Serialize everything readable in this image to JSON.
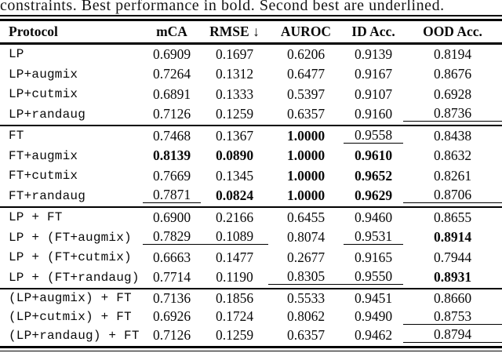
{
  "caption": "constraints. Best performance in bold. Second best are underlined.",
  "colors": {
    "background": "#ffffff",
    "text": "#0a0a0a",
    "rule": "#000000"
  },
  "table": {
    "columns": [
      "Protocol",
      "mCA",
      "RMSE ↓",
      "AUROC",
      "ID Acc.",
      "OOD Acc."
    ],
    "style_legend": {
      "n": "normal",
      "b": "bold (best)",
      "u": "underlined (second best)"
    },
    "blocks": [
      {
        "rows": [
          {
            "label": "LP",
            "values": [
              {
                "v": "0.6909",
                "s": "n"
              },
              {
                "v": "0.1697",
                "s": "n"
              },
              {
                "v": "0.6206",
                "s": "n"
              },
              {
                "v": "0.9139",
                "s": "n"
              },
              {
                "v": "0.8194",
                "s": "n"
              }
            ]
          },
          {
            "label": "LP+augmix",
            "values": [
              {
                "v": "0.7264",
                "s": "n"
              },
              {
                "v": "0.1312",
                "s": "n"
              },
              {
                "v": "0.6477",
                "s": "n"
              },
              {
                "v": "0.9167",
                "s": "n"
              },
              {
                "v": "0.8676",
                "s": "n"
              }
            ]
          },
          {
            "label": "LP+cutmix",
            "values": [
              {
                "v": "0.6891",
                "s": "n"
              },
              {
                "v": "0.1333",
                "s": "n"
              },
              {
                "v": "0.5397",
                "s": "n"
              },
              {
                "v": "0.9107",
                "s": "n"
              },
              {
                "v": "0.6928",
                "s": "n"
              }
            ]
          },
          {
            "label": "LP+randaug",
            "values": [
              {
                "v": "0.7126",
                "s": "n"
              },
              {
                "v": "0.1259",
                "s": "n"
              },
              {
                "v": "0.6357",
                "s": "n"
              },
              {
                "v": "0.9160",
                "s": "n"
              },
              {
                "v": "0.8736",
                "s": "u"
              }
            ]
          }
        ]
      },
      {
        "rows": [
          {
            "label": "FT",
            "values": [
              {
                "v": "0.7468",
                "s": "n"
              },
              {
                "v": "0.1367",
                "s": "n"
              },
              {
                "v": "1.0000",
                "s": "b"
              },
              {
                "v": "0.9558",
                "s": "u"
              },
              {
                "v": "0.8438",
                "s": "n"
              }
            ]
          },
          {
            "label": "FT+augmix",
            "values": [
              {
                "v": "0.8139",
                "s": "b"
              },
              {
                "v": "0.0890",
                "s": "b"
              },
              {
                "v": "1.0000",
                "s": "b"
              },
              {
                "v": "0.9610",
                "s": "b"
              },
              {
                "v": "0.8632",
                "s": "n"
              }
            ]
          },
          {
            "label": "FT+cutmix",
            "values": [
              {
                "v": "0.7669",
                "s": "n"
              },
              {
                "v": "0.1345",
                "s": "n"
              },
              {
                "v": "1.0000",
                "s": "b"
              },
              {
                "v": "0.9652",
                "s": "b"
              },
              {
                "v": "0.8261",
                "s": "n"
              }
            ]
          },
          {
            "label": "FT+randaug",
            "values": [
              {
                "v": "0.7871",
                "s": "u"
              },
              {
                "v": "0.0824",
                "s": "b"
              },
              {
                "v": "1.0000",
                "s": "b"
              },
              {
                "v": "0.9629",
                "s": "b"
              },
              {
                "v": "0.8706",
                "s": "u"
              }
            ]
          }
        ]
      },
      {
        "rows": [
          {
            "label": "LP + FT",
            "values": [
              {
                "v": "0.6900",
                "s": "n"
              },
              {
                "v": "0.2166",
                "s": "n"
              },
              {
                "v": "0.6455",
                "s": "n"
              },
              {
                "v": "0.9460",
                "s": "n"
              },
              {
                "v": "0.8655",
                "s": "n"
              }
            ]
          },
          {
            "label": "LP + (FT+augmix)",
            "values": [
              {
                "v": "0.7829",
                "s": "u"
              },
              {
                "v": "0.1089",
                "s": "u"
              },
              {
                "v": "0.8074",
                "s": "n"
              },
              {
                "v": "0.9531",
                "s": "u"
              },
              {
                "v": "0.8914",
                "s": "b"
              }
            ]
          },
          {
            "label": "LP + (FT+cutmix)",
            "values": [
              {
                "v": "0.6663",
                "s": "n"
              },
              {
                "v": "0.1477",
                "s": "n"
              },
              {
                "v": "0.2677",
                "s": "n"
              },
              {
                "v": "0.9165",
                "s": "n"
              },
              {
                "v": "0.7944",
                "s": "n"
              }
            ]
          },
          {
            "label": "LP + (FT+randaug)",
            "values": [
              {
                "v": "0.7714",
                "s": "n"
              },
              {
                "v": "0.1190",
                "s": "n"
              },
              {
                "v": "0.8305",
                "s": "u"
              },
              {
                "v": "0.9550",
                "s": "u"
              },
              {
                "v": "0.8931",
                "s": "b"
              }
            ]
          }
        ]
      },
      {
        "rows": [
          {
            "label": "(LP+augmix) + FT",
            "values": [
              {
                "v": "0.7136",
                "s": "n"
              },
              {
                "v": "0.1856",
                "s": "n"
              },
              {
                "v": "0.5533",
                "s": "n"
              },
              {
                "v": "0.9451",
                "s": "n"
              },
              {
                "v": "0.8660",
                "s": "n"
              }
            ]
          },
          {
            "label": "(LP+cutmix) + FT",
            "values": [
              {
                "v": "0.6926",
                "s": "n"
              },
              {
                "v": "0.1724",
                "s": "n"
              },
              {
                "v": "0.8062",
                "s": "n"
              },
              {
                "v": "0.9490",
                "s": "n"
              },
              {
                "v": "0.8753",
                "s": "u"
              }
            ]
          },
          {
            "label": "(LP+randaug) + FT",
            "values": [
              {
                "v": "0.7126",
                "s": "n"
              },
              {
                "v": "0.1259",
                "s": "n"
              },
              {
                "v": "0.6357",
                "s": "n"
              },
              {
                "v": "0.9462",
                "s": "n"
              },
              {
                "v": "0.8794",
                "s": "u"
              }
            ]
          }
        ]
      }
    ]
  }
}
